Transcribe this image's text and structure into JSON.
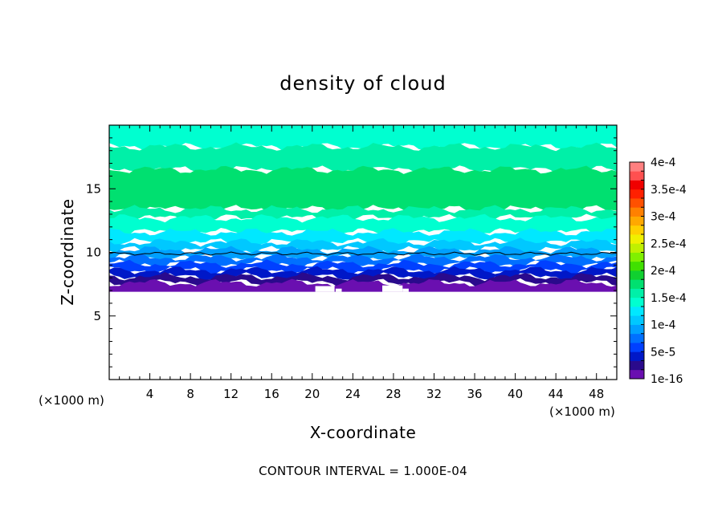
{
  "chart_data": {
    "type": "heatmap",
    "title": "density of cloud",
    "xlabel": "X-coordinate",
    "ylabel": "Z-coordinate",
    "x_unit_left": "(×1000 m)",
    "x_unit_right": "(×1000 m)",
    "xlim": [
      0,
      50
    ],
    "ylim": [
      0,
      20
    ],
    "xticks": [
      "4",
      "8",
      "12",
      "16",
      "20",
      "24",
      "28",
      "32",
      "36",
      "40",
      "44",
      "48"
    ],
    "yticks": [
      "5",
      "10",
      "15"
    ],
    "colorbar": {
      "labels": [
        "1e-16",
        "5e-5",
        "1e-4",
        "1.5e-4",
        "2e-4",
        "2.5e-4",
        "3e-4",
        "3.5e-4",
        "4e-4"
      ],
      "levels": [
        1e-16,
        1.667e-05,
        3.333e-05,
        5e-05,
        6.667e-05,
        8.333e-05,
        0.0001,
        0.00011667,
        0.00013333,
        0.00015,
        0.00016667,
        0.00018333,
        0.0002,
        0.00021667,
        0.00023333,
        0.00025,
        0.00026667,
        0.00028333,
        0.0003,
        0.00031667,
        0.00033333,
        0.00035,
        0.00036667,
        0.00038333,
        0.0004
      ],
      "colors": [
        "#6a0fb0",
        "#2a0a8c",
        "#0018c8",
        "#0040ff",
        "#0070ff",
        "#00a0ff",
        "#00c8ff",
        "#00e8ff",
        "#00ffd0",
        "#00f0a8",
        "#00e070",
        "#10d030",
        "#40e000",
        "#80f000",
        "#c0f000",
        "#f0f000",
        "#ffd000",
        "#ffa800",
        "#ff8000",
        "#ff5000",
        "#ff2000",
        "#f00000",
        "#ff5050",
        "#ff8080"
      ]
    },
    "profile": {
      "description_levels_by_height": [
        {
          "z": [
            6.9,
            7.6
          ],
          "value": 1e-16
        },
        {
          "z": [
            7.6,
            8.1
          ],
          "value": 1.667e-05
        },
        {
          "z": [
            8.1,
            8.6
          ],
          "value": 3.333e-05
        },
        {
          "z": [
            8.6,
            9.1
          ],
          "value": 5e-05
        },
        {
          "z": [
            9.1,
            9.6
          ],
          "value": 6.667e-05
        },
        {
          "z": [
            9.6,
            10.2
          ],
          "value": 8.333e-05
        },
        {
          "z": [
            10.2,
            10.8
          ],
          "value": 0.0001
        },
        {
          "z": [
            10.8,
            11.6
          ],
          "value": 0.00011667
        },
        {
          "z": [
            11.6,
            12.7
          ],
          "value": 0.00013333
        },
        {
          "z": [
            12.7,
            13.4
          ],
          "value": 0.00015
        },
        {
          "z": [
            13.4,
            16.5
          ],
          "value": 0.00016667
        },
        {
          "z": [
            16.5,
            18.3
          ],
          "value": 0.00015
        },
        {
          "z": [
            18.3,
            20.0
          ],
          "value": 0.00013333
        }
      ],
      "contour_line_z": 9.9
    },
    "footer": "CONTOUR INTERVAL = 1.000E-04"
  }
}
